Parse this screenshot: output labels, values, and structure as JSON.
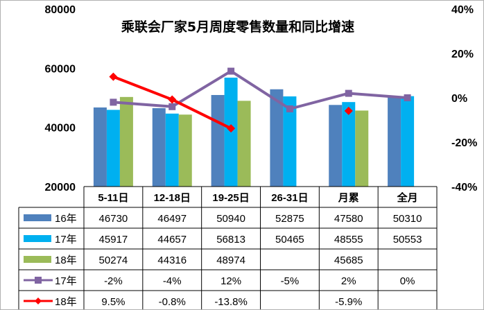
{
  "chart_data": {
    "type": "bar",
    "title": "乘联会厂家5月周度零售数量和同比增速",
    "categories": [
      "5-11日",
      "12-18日",
      "19-25日",
      "26-31日",
      "月累",
      "全月"
    ],
    "y_left": {
      "ylim": [
        20000,
        80000
      ],
      "ticks": [
        "20000",
        "40000",
        "60000",
        "80000"
      ]
    },
    "y_right": {
      "ylim": [
        -40,
        40
      ],
      "ticks": [
        "-40%",
        "-20%",
        "0%",
        "20%",
        "40%"
      ]
    },
    "series": [
      {
        "name": "16年",
        "type": "bar",
        "color": "#4f81bd",
        "values": [
          46730,
          46497,
          50940,
          52875,
          47580,
          50310
        ],
        "labels": [
          "46730",
          "46497",
          "50940",
          "52875",
          "47580",
          "50310"
        ]
      },
      {
        "name": "17年",
        "type": "bar",
        "color": "#00b0f0",
        "values": [
          45917,
          44657,
          56813,
          50465,
          48555,
          50553
        ],
        "labels": [
          "45917",
          "44657",
          "56813",
          "50465",
          "48555",
          "50553"
        ]
      },
      {
        "name": "18年",
        "type": "bar",
        "color": "#9bbb59",
        "values": [
          50274,
          44316,
          48974,
          null,
          45685,
          null
        ],
        "labels": [
          "50274",
          "44316",
          "48974",
          "",
          "45685",
          ""
        ]
      },
      {
        "name": "17年",
        "type": "line",
        "axis": "right",
        "color": "#8064a2",
        "marker": "square",
        "values": [
          -2,
          -4,
          12,
          -5,
          2,
          0
        ],
        "labels": [
          "-2%",
          "-4%",
          "12%",
          "-5%",
          "2%",
          "0%"
        ]
      },
      {
        "name": "18年",
        "type": "line",
        "axis": "right",
        "color": "#ff0000",
        "marker": "diamond",
        "values": [
          9.5,
          -0.8,
          -13.8,
          null,
          -5.9,
          null
        ],
        "labels": [
          "9.5%",
          "-0.8%",
          "-13.8%",
          "",
          "-5.9%",
          ""
        ]
      }
    ]
  }
}
